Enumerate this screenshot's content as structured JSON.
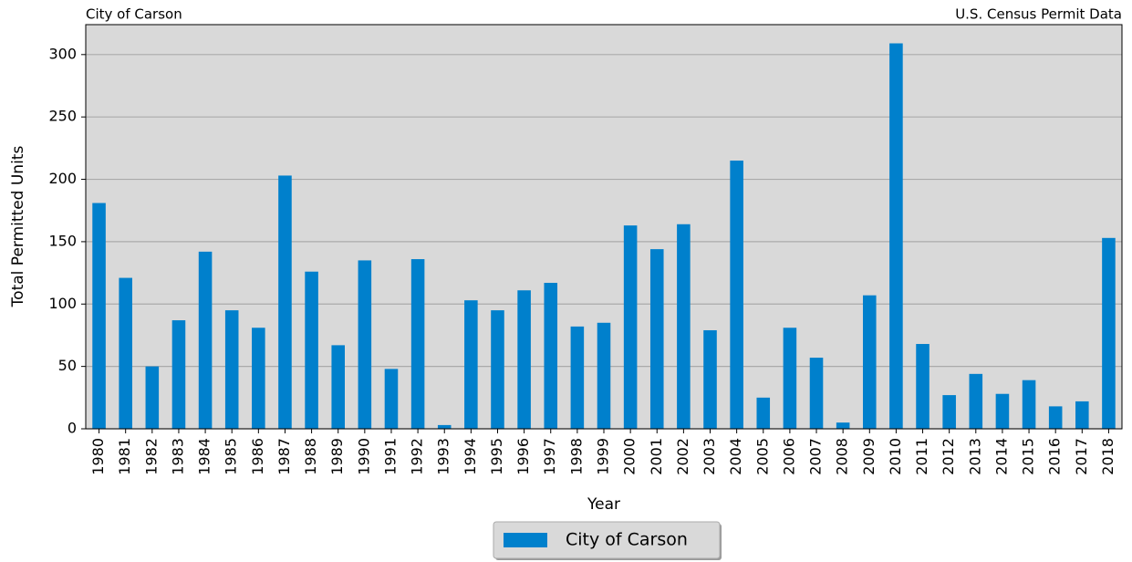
{
  "chart_data": {
    "type": "bar",
    "title": "City of Carson",
    "subtitle": "U.S. Census Permit Data",
    "x_label": "Year",
    "y_label": "Total Permitted Units",
    "categories": [
      "1980",
      "1981",
      "1982",
      "1983",
      "1984",
      "1985",
      "1986",
      "1987",
      "1988",
      "1989",
      "1990",
      "1991",
      "1992",
      "1993",
      "1994",
      "1995",
      "1996",
      "1997",
      "1998",
      "1999",
      "2000",
      "2001",
      "2002",
      "2003",
      "2004",
      "2005",
      "2006",
      "2007",
      "2008",
      "2009",
      "2010",
      "2011",
      "2012",
      "2013",
      "2014",
      "2015",
      "2016",
      "2017",
      "2018"
    ],
    "series": [
      {
        "name": "City of Carson",
        "color": "#0080cc",
        "values": [
          181,
          121,
          50,
          87,
          142,
          95,
          81,
          203,
          126,
          67,
          135,
          48,
          136,
          3,
          103,
          95,
          111,
          117,
          82,
          85,
          163,
          144,
          164,
          79,
          215,
          25,
          81,
          57,
          5,
          107,
          309,
          68,
          27,
          44,
          28,
          39,
          18,
          22,
          153
        ]
      }
    ],
    "ylim": [
      0,
      324
    ],
    "yticks": [
      0,
      50,
      100,
      150,
      200,
      250,
      300
    ],
    "grid": true,
    "legend": "bottom"
  }
}
